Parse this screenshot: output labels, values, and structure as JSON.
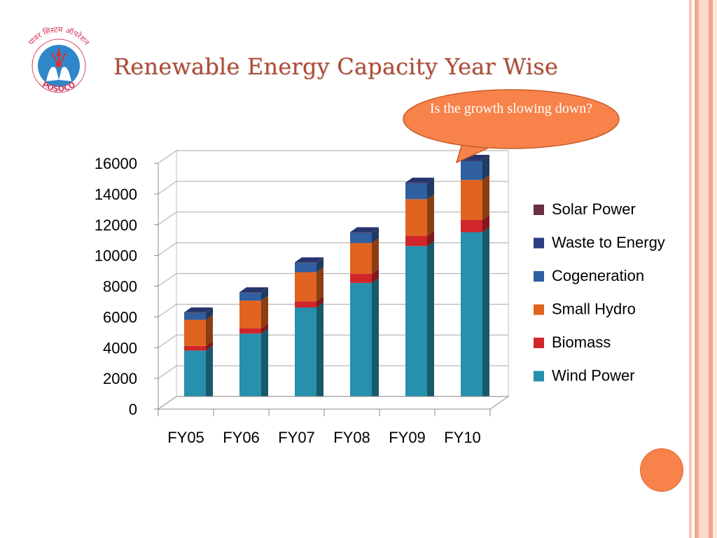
{
  "slide": {
    "title": "Renewable Energy Capacity Year Wise",
    "callout": "Is the growth slowing down?",
    "logo": {
      "icon": "posoco-logo-icon",
      "text_top": "पावर सिस्टम ऑपरेशन",
      "text_bottom": "POSOCO"
    }
  },
  "colors": {
    "title": "#b04a34",
    "callout_fill": "#f7834a",
    "accent_circle": "#f7834a",
    "stripes": "#f2a88c"
  },
  "chart_data": {
    "type": "bar",
    "stacked": true,
    "style": "3d",
    "categories": [
      "FY05",
      "FY06",
      "FY07",
      "FY08",
      "FY09",
      "FY10"
    ],
    "ylim": [
      0,
      16000
    ],
    "yticks": [
      0,
      2000,
      4000,
      6000,
      8000,
      10000,
      12000,
      14000,
      16000
    ],
    "grid": true,
    "legend": "right",
    "series": [
      {
        "name": "Wind Power",
        "color": "#2690ad",
        "values": [
          3400,
          4500,
          6200,
          7800,
          10200,
          11100
        ]
      },
      {
        "name": "Biomass",
        "color": "#d0262b",
        "values": [
          300,
          350,
          400,
          600,
          650,
          800
        ]
      },
      {
        "name": "Small Hydro",
        "color": "#e0631f",
        "values": [
          1700,
          1800,
          1900,
          2000,
          2400,
          2600
        ]
      },
      {
        "name": "Cogeneration",
        "color": "#2f5fa0",
        "values": [
          450,
          500,
          600,
          650,
          1000,
          1200
        ]
      },
      {
        "name": "Waste to Energy",
        "color": "#2c3d80",
        "values": [
          30,
          40,
          40,
          50,
          60,
          100
        ]
      },
      {
        "name": "Solar Power",
        "color": "#6a3040",
        "values": [
          5,
          5,
          5,
          5,
          20,
          20
        ]
      }
    ]
  }
}
